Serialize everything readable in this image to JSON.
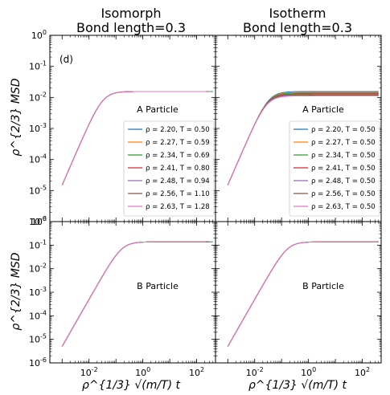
{
  "figure": {
    "ylabel": "ρ^{2/3} MSD",
    "xlabel": "ρ^{1/3} √(m/T) t",
    "column_titles": [
      {
        "line1": "Isomorph",
        "line2": "Bond length=0.3"
      },
      {
        "line1": "Isotherm",
        "line2": "Bond length=0.3"
      }
    ],
    "panel_tag": "(d)"
  },
  "chart_data": [
    {
      "type": "line",
      "title": "Isomorph, Bond length=0.3",
      "annotation": "A Particle",
      "x_scale": "log",
      "y_scale": "log",
      "xlim": [
        0.00035,
        500
      ],
      "ylim": [
        1e-06,
        1
      ],
      "x_ticks": [
        "10^{-2}",
        "10^{0}",
        "10^{2}"
      ],
      "y_ticks": [
        "10^{-6}",
        "10^{-5}",
        "10^{-4}",
        "10^{-3}",
        "10^{-2}",
        "10^{-1}",
        "10^{0}"
      ],
      "legend_position": "lower-right",
      "series": [
        {
          "name": "ρ = 2.20, T = 0.50",
          "color": "#1f77b4",
          "plateau": 0.0155,
          "t_end": 400
        },
        {
          "name": "ρ = 2.27, T = 0.59",
          "color": "#ff7f0e",
          "plateau": 0.0155,
          "t_end": 330
        },
        {
          "name": "ρ = 2.34, T = 0.69",
          "color": "#2ca02c",
          "plateau": 0.0155,
          "t_end": 300
        },
        {
          "name": "ρ = 2.41, T = 0.80",
          "color": "#d62728",
          "plateau": 0.0155,
          "t_end": 280
        },
        {
          "name": "ρ = 2.48, T = 0.94",
          "color": "#9467bd",
          "plateau": 0.0155,
          "t_end": 260
        },
        {
          "name": "ρ = 2.56, T = 1.10",
          "color": "#8c564b",
          "plateau": 0.0155,
          "t_end": 240
        },
        {
          "name": "ρ = 2.63, T = 1.28",
          "color": "#e377c2",
          "plateau": 0.0155,
          "t_end": 220
        }
      ]
    },
    {
      "type": "line",
      "title": "Isotherm, Bond length=0.3",
      "annotation": "A Particle",
      "x_scale": "log",
      "y_scale": "log",
      "xlim": [
        0.00035,
        500
      ],
      "ylim": [
        1e-06,
        1
      ],
      "x_ticks": [
        "10^{-2}",
        "10^{0}",
        "10^{2}"
      ],
      "y_ticks": [],
      "legend_position": "lower-right",
      "series": [
        {
          "name": "ρ = 2.20, T = 0.50",
          "color": "#1f77b4",
          "plateau": 0.0155,
          "t_end": 400
        },
        {
          "name": "ρ = 2.27, T = 0.50",
          "color": "#ff7f0e",
          "plateau": 0.0145,
          "t_end": 400
        },
        {
          "name": "ρ = 2.34, T = 0.50",
          "color": "#2ca02c",
          "plateau": 0.0138,
          "t_end": 400
        },
        {
          "name": "ρ = 2.41, T = 0.50",
          "color": "#d62728",
          "plateau": 0.013,
          "t_end": 400
        },
        {
          "name": "ρ = 2.48, T = 0.50",
          "color": "#9467bd",
          "plateau": 0.0124,
          "t_end": 400
        },
        {
          "name": "ρ = 2.56, T = 0.50",
          "color": "#8c564b",
          "plateau": 0.0118,
          "t_end": 400
        },
        {
          "name": "ρ = 2.63, T = 0.50",
          "color": "#e377c2",
          "plateau": 0.0112,
          "t_end": 400
        }
      ]
    },
    {
      "type": "line",
      "title": "",
      "annotation": "B Particle",
      "x_scale": "log",
      "y_scale": "log",
      "xlim": [
        0.00035,
        500
      ],
      "ylim": [
        1e-06,
        1
      ],
      "x_ticks": [
        "10^{-2}",
        "10^{0}",
        "10^{2}"
      ],
      "y_ticks": [
        "10^{-6}",
        "10^{-5}",
        "10^{-4}",
        "10^{-3}",
        "10^{-2}",
        "10^{-1}",
        "10^{0}"
      ],
      "series": [
        {
          "name": "ρ = 2.20, T = 0.50",
          "color": "#1f77b4",
          "plateau": 0.138,
          "t_end": 400
        },
        {
          "name": "ρ = 2.27, T = 0.59",
          "color": "#ff7f0e",
          "plateau": 0.138,
          "t_end": 330
        },
        {
          "name": "ρ = 2.34, T = 0.69",
          "color": "#2ca02c",
          "plateau": 0.138,
          "t_end": 300
        },
        {
          "name": "ρ = 2.41, T = 0.80",
          "color": "#d62728",
          "plateau": 0.138,
          "t_end": 280
        },
        {
          "name": "ρ = 2.48, T = 0.94",
          "color": "#9467bd",
          "plateau": 0.138,
          "t_end": 260
        },
        {
          "name": "ρ = 2.56, T = 1.10",
          "color": "#8c564b",
          "plateau": 0.138,
          "t_end": 240
        },
        {
          "name": "ρ = 2.63, T = 1.28",
          "color": "#e377c2",
          "plateau": 0.138,
          "t_end": 220
        }
      ]
    },
    {
      "type": "line",
      "title": "",
      "annotation": "B Particle",
      "x_scale": "log",
      "y_scale": "log",
      "xlim": [
        0.00035,
        500
      ],
      "ylim": [
        1e-06,
        1
      ],
      "x_ticks": [
        "10^{-2}",
        "10^{0}",
        "10^{2}"
      ],
      "y_ticks": [],
      "series": [
        {
          "name": "ρ = 2.20, T = 0.50",
          "color": "#1f77b4",
          "plateau": 0.138,
          "t_end": 400
        },
        {
          "name": "ρ = 2.27, T = 0.50",
          "color": "#ff7f0e",
          "plateau": 0.138,
          "t_end": 400
        },
        {
          "name": "ρ = 2.34, T = 0.50",
          "color": "#2ca02c",
          "plateau": 0.138,
          "t_end": 400
        },
        {
          "name": "ρ = 2.41, T = 0.50",
          "color": "#d62728",
          "plateau": 0.138,
          "t_end": 400
        },
        {
          "name": "ρ = 2.48, T = 0.50",
          "color": "#9467bd",
          "plateau": 0.138,
          "t_end": 400
        },
        {
          "name": "ρ = 2.56, T = 0.50",
          "color": "#8c564b",
          "plateau": 0.138,
          "t_end": 400
        },
        {
          "name": "ρ = 2.63, T = 0.50",
          "color": "#e377c2",
          "plateau": 0.138,
          "t_end": 400
        }
      ]
    }
  ]
}
